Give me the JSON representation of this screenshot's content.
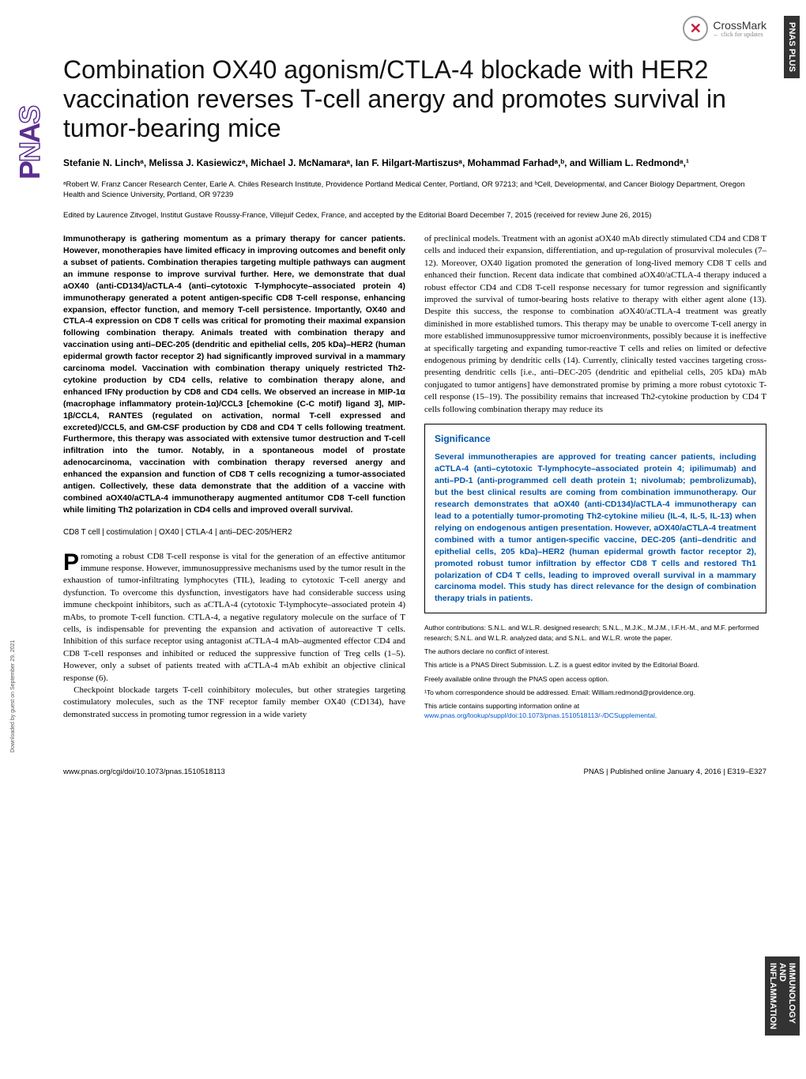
{
  "crossmark": {
    "label": "CrossMark",
    "sub": "← click for updates"
  },
  "sideLabelTop": "PNAS PLUS",
  "sideLabelBottom": "IMMUNOLOGY AND INFLAMMATION",
  "pnasLogo": "PNAS",
  "title": "Combination OX40 agonism/CTLA-4 blockade with HER2 vaccination reverses T-cell anergy and promotes survival in tumor-bearing mice",
  "authors": "Stefanie N. Linchᵃ, Melissa J. Kasiewiczᵃ, Michael J. McNamaraᵃ, Ian F. Hilgart-Martiszusᵃ, Mohammad Farhadᵃ,ᵇ, and William L. Redmondᵃ,¹",
  "affiliations": "ᵃRobert W. Franz Cancer Research Center, Earle A. Chiles Research Institute, Providence Portland Medical Center, Portland, OR 97213; and ᵇCell, Developmental, and Cancer Biology Department, Oregon Health and Science University, Portland, OR 97239",
  "edited": "Edited by Laurence Zitvogel, Institut Gustave Roussy-France, Villejuif Cedex, France, and accepted by the Editorial Board December 7, 2015 (received for review June 26, 2015)",
  "abstract": "Immunotherapy is gathering momentum as a primary therapy for cancer patients. However, monotherapies have limited efficacy in improving outcomes and benefit only a subset of patients. Combination therapies targeting multiple pathways can augment an immune response to improve survival further. Here, we demonstrate that dual aOX40 (anti-CD134)/aCTLA-4 (anti–cytotoxic T-lymphocyte–associated protein 4) immunotherapy generated a potent antigen-specific CD8 T-cell response, enhancing expansion, effector function, and memory T-cell persistence. Importantly, OX40 and CTLA-4 expression on CD8 T cells was critical for promoting their maximal expansion following combination therapy. Animals treated with combination therapy and vaccination using anti–DEC-205 (dendritic and epithelial cells, 205 kDa)–HER2 (human epidermal growth factor receptor 2) had significantly improved survival in a mammary carcinoma model. Vaccination with combination therapy uniquely restricted Th2-cytokine production by CD4 cells, relative to combination therapy alone, and enhanced IFNγ production by CD8 and CD4 cells. We observed an increase in MIP-1α (macrophage inflammatory protein-1α)/CCL3 [chemokine (C-C motif) ligand 3], MIP-1β/CCL4, RANTES (regulated on activation, normal T-cell expressed and excreted)/CCL5, and GM-CSF production by CD8 and CD4 T cells following treatment. Furthermore, this therapy was associated with extensive tumor destruction and T-cell infiltration into the tumor. Notably, in a spontaneous model of prostate adenocarcinoma, vaccination with combination therapy reversed anergy and enhanced the expansion and function of CD8 T cells recognizing a tumor-associated antigen. Collectively, these data demonstrate that the addition of a vaccine with combined aOX40/aCTLA-4 immunotherapy augmented antitumor CD8 T-cell function while limiting Th2 polarization in CD4 cells and improved overall survival.",
  "keywords": "CD8 T cell | costimulation | OX40 | CTLA-4 | anti–DEC-205/HER2",
  "introPara1": "romoting a robust CD8 T-cell response is vital for the generation of an effective antitumor immune response. However, immunosuppressive mechanisms used by the tumor result in the exhaustion of tumor-infiltrating lymphocytes (TIL), leading to cytotoxic T-cell anergy and dysfunction. To overcome this dysfunction, investigators have had considerable success using immune checkpoint inhibitors, such as aCTLA-4 (cytotoxic T-lymphocyte–associated protein 4) mAbs, to promote T-cell function. CTLA-4, a negative regulatory molecule on the surface of T cells, is indispensable for preventing the expansion and activation of autoreactive T cells. Inhibition of this surface receptor using antagonist aCTLA-4 mAb–augmented effector CD4 and CD8 T-cell responses and inhibited or reduced the suppressive function of Treg cells (1–5). However, only a subset of patients treated with aCTLA-4 mAb exhibit an objective clinical response (6).",
  "introPara2": "Checkpoint blockade targets T-cell coinhibitory molecules, but other strategies targeting costimulatory molecules, such as the TNF receptor family member OX40 (CD134), have demonstrated success in promoting tumor regression in a wide variety",
  "col2Para1": "of preclinical models. Treatment with an agonist aOX40 mAb directly stimulated CD4 and CD8 T cells and induced their expansion, differentiation, and up-regulation of prosurvival molecules (7–12). Moreover, OX40 ligation promoted the generation of long-lived memory CD8 T cells and enhanced their function. Recent data indicate that combined aOX40/aCTLA-4 therapy induced a robust effector CD4 and CD8 T-cell response necessary for tumor regression and significantly improved the survival of tumor-bearing hosts relative to therapy with either agent alone (13). Despite this success, the response to combination aOX40/aCTLA-4 treatment was greatly diminished in more established tumors. This therapy may be unable to overcome T-cell anergy in more established immunosuppressive tumor microenvironments, possibly because it is ineffective at specifically targeting and expanding tumor-reactive T cells and relies on limited or defective endogenous priming by dendritic cells (14). Currently, clinically tested vaccines targeting cross-presenting dendritic cells [i.e., anti–DEC-205 (dendritic and epithelial cells, 205 kDa) mAb conjugated to tumor antigens] have demonstrated promise by priming a more robust cytotoxic T-cell response (15–19). The possibility remains that increased Th2-cytokine production by CD4 T cells following combination therapy may reduce its",
  "significance": {
    "title": "Significance",
    "body": "Several immunotherapies are approved for treating cancer patients, including aCTLA-4 (anti–cytotoxic T-lymphocyte–associated protein 4; ipilimumab) and anti–PD-1 (anti-programmed cell death protein 1; nivolumab; pembrolizumab), but the best clinical results are coming from combination immunotherapy. Our research demonstrates that aOX40 (anti-CD134)/aCTLA-4 immunotherapy can lead to a potentially tumor-promoting Th2-cytokine milieu (IL-4, IL-5, IL-13) when relying on endogenous antigen presentation. However, aOX40/aCTLA-4 treatment combined with a tumor antigen-specific vaccine, DEC-205 (anti–dendritic and epithelial cells, 205 kDa)–HER2 (human epidermal growth factor receptor 2), promoted robust tumor infiltration by effector CD8 T cells and restored Th1 polarization of CD4 T cells, leading to improved overall survival in a mammary carcinoma model. This study has direct relevance for the design of combination therapy trials in patients."
  },
  "footnotes": {
    "contrib": "Author contributions: S.N.L. and W.L.R. designed research; S.N.L., M.J.K., M.J.M., I.F.H.-M., and M.F. performed research; S.N.L. and W.L.R. analyzed data; and S.N.L. and W.L.R. wrote the paper.",
    "conflict": "The authors declare no conflict of interest.",
    "direct": "This article is a PNAS Direct Submission. L.Z. is a guest editor invited by the Editorial Board.",
    "open": "Freely available online through the PNAS open access option.",
    "corresp": "¹To whom correspondence should be addressed. Email: William.redmond@providence.org.",
    "supp": "This article contains supporting information online at ",
    "suppLink": "www.pnas.org/lookup/suppl/doi:10.1073/pnas.1510518113/-/DCSupplemental",
    "suppEnd": "."
  },
  "footer": {
    "left": "www.pnas.org/cgi/doi/10.1073/pnas.1510518113",
    "right": "PNAS | Published online January 4, 2016 | E319–E327"
  },
  "downloadNote": "Downloaded by guest on September 29, 2021",
  "colors": {
    "titleColor": "#111111",
    "sigColor": "#0055aa",
    "linkColor": "#0055cc",
    "sidebarBg": "#333333",
    "pnasPurple": "#5b2e8f"
  }
}
